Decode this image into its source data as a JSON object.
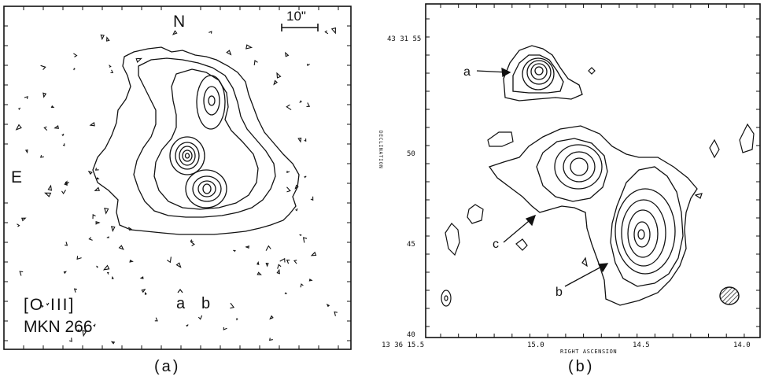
{
  "panel_a": {
    "compass_north": "N",
    "compass_east": "E",
    "scale_bar": "10\"",
    "line_label": "[O III]",
    "object_label": "MKN 266",
    "marker_a": "a",
    "marker_b": "b",
    "caption": "(a)"
  },
  "panel_b": {
    "caption": "(b)",
    "x_axis_label": "RIGHT ASCENSION",
    "y_axis_label": "DECLINATION",
    "y_tick_top": "43 31 55",
    "y_ticks": [
      "50",
      "45",
      "40"
    ],
    "x_tick_first": "13 36 15.5",
    "x_ticks": [
      "15.0",
      "14.5",
      "14.0"
    ],
    "markers": [
      "a",
      "b",
      "c"
    ]
  }
}
